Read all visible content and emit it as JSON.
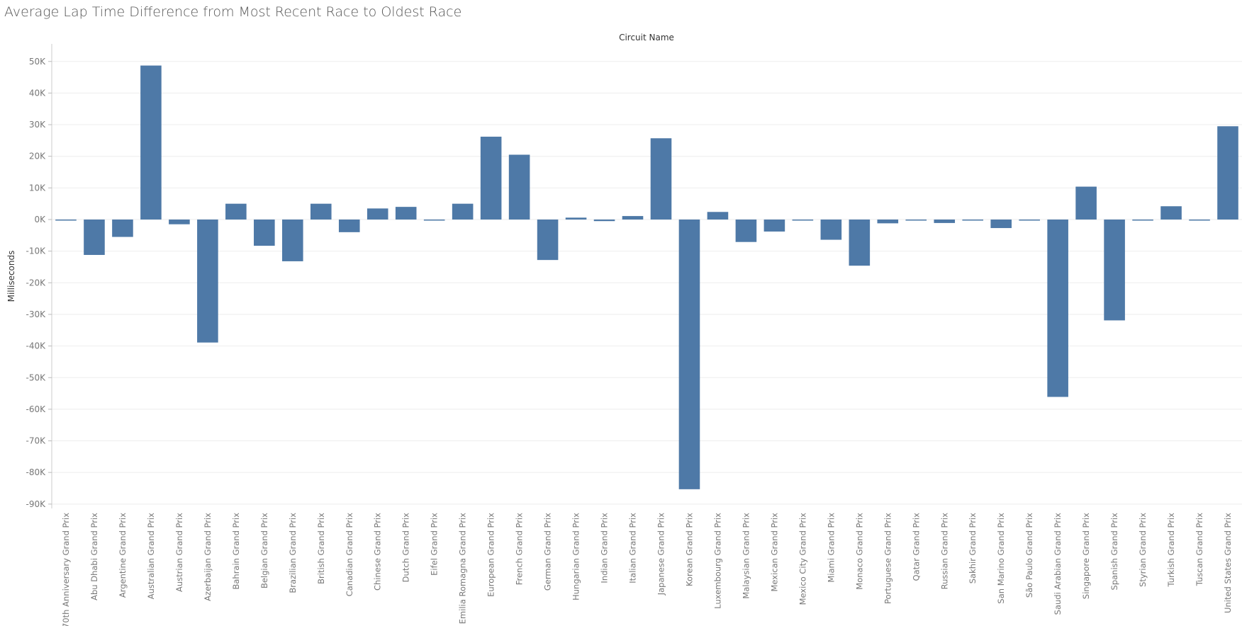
{
  "page": {
    "title": "Average Lap Time Difference from Most Recent Race to Oldest Race"
  },
  "colors": {
    "bar": "#4e79a7",
    "gridline": "#eeeeee",
    "axis_text": "#777777",
    "header_text": "#333333"
  },
  "chart_data": {
    "type": "bar",
    "title": "Average Lap Time Difference from Most Recent Race to Oldest Race",
    "column_header": "Circuit Name",
    "xlabel": "",
    "ylabel": "Milliseconds",
    "ylim": [
      -92000,
      52000
    ],
    "yticks": [
      50000,
      40000,
      30000,
      20000,
      10000,
      0,
      -10000,
      -20000,
      -30000,
      -40000,
      -50000,
      -60000,
      -70000,
      -80000,
      -90000
    ],
    "ytick_labels": [
      "50K",
      "40K",
      "30K",
      "20K",
      "10K",
      "0K",
      "-10K",
      "-20K",
      "-30K",
      "-40K",
      "-50K",
      "-60K",
      "-70K",
      "-80K",
      "-90K"
    ],
    "grid": true,
    "categories": [
      "70th Anniversary Grand Prix",
      "Abu Dhabi Grand Prix",
      "Argentine Grand Prix",
      "Australian Grand Prix",
      "Austrian Grand Prix",
      "Azerbaijan Grand Prix",
      "Bahrain Grand Prix",
      "Belgian Grand Prix",
      "Brazilian Grand Prix",
      "British Grand Prix",
      "Canadian Grand Prix",
      "Chinese Grand Prix",
      "Dutch Grand Prix",
      "Eifel Grand Prix",
      "Emilia Romagna Grand Prix",
      "European Grand Prix",
      "French Grand Prix",
      "German Grand Prix",
      "Hungarian Grand Prix",
      "Indian Grand Prix",
      "Italian Grand Prix",
      "Japanese Grand Prix",
      "Korean Grand Prix",
      "Luxembourg Grand Prix",
      "Malaysian Grand Prix",
      "Mexican Grand Prix",
      "Mexico City Grand Prix",
      "Miami Grand Prix",
      "Monaco Grand Prix",
      "Portuguese Grand Prix",
      "Qatar Grand Prix",
      "Russian Grand Prix",
      "Sakhir Grand Prix",
      "San Marino Grand Prix",
      "São Paulo Grand Prix",
      "Saudi Arabian Grand Prix",
      "Singapore Grand Prix",
      "Spanish Grand Prix",
      "Styrian Grand Prix",
      "Turkish Grand Prix",
      "Tuscan Grand Prix",
      "United States Grand Prix"
    ],
    "values": [
      -200,
      -11200,
      -5500,
      48700,
      -1500,
      -38900,
      5000,
      -8300,
      -13200,
      5000,
      -4000,
      3500,
      4000,
      -200,
      5000,
      26200,
      20500,
      -12800,
      600,
      -500,
      1100,
      25700,
      -85300,
      2400,
      -7100,
      -3800,
      -200,
      -6400,
      -14600,
      -1200,
      -200,
      -1100,
      -300,
      -2700,
      -200,
      -56100,
      10400,
      -31900,
      -300,
      4200,
      -200,
      29500
    ]
  }
}
